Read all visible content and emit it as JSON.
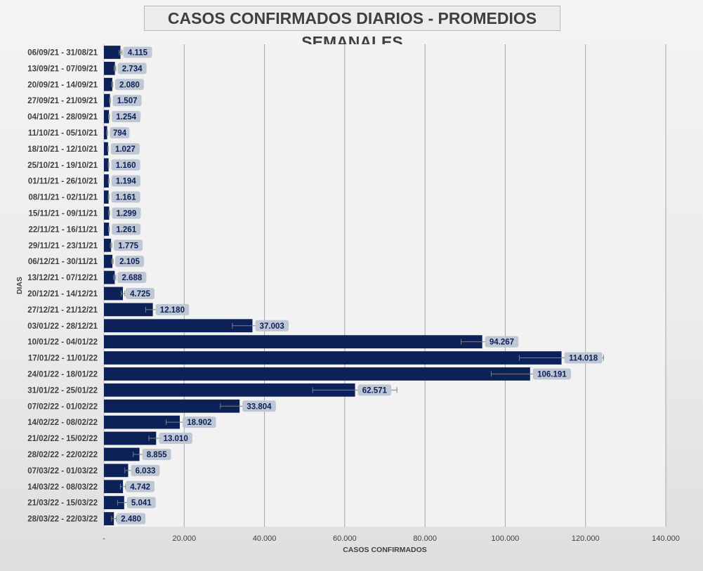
{
  "chart_data": {
    "type": "bar",
    "orientation": "horizontal",
    "title": "CASOS CONFIRMADOS DIARIOS - PROMEDIOS SEMANALES",
    "xlabel": "CASOS CONFIRMADOS",
    "ylabel": "DIAS",
    "xlim": [
      0,
      140000
    ],
    "x_ticks": [
      "-",
      "20.000",
      "40.000",
      "60.000",
      "80.000",
      "100.000",
      "120.000",
      "140.000"
    ],
    "grid": "vertical",
    "legend": "none",
    "colors": {
      "bar": "#0b2158",
      "plot_bg": "#f2f2f2",
      "gridline": "#a6a6a6",
      "label_bg": "#bfc7d5",
      "label_text": "#0b2158",
      "error_bar": "#7f7f7f"
    },
    "categories": [
      "06/09/21 - 31/08/21",
      "13/09/21 - 07/09/21",
      "20/09/21 - 14/09/21",
      "27/09/21 - 21/09/21",
      "04/10/21 - 28/09/21",
      "11/10/21 - 05/10/21",
      "18/10/21 - 12/10/21",
      "25/10/21 - 19/10/21",
      "01/11/21 - 26/10/21",
      "08/11/21 - 02/11/21",
      "15/11/21 - 09/11/21",
      "22/11/21 - 16/11/21",
      "29/11/21 - 23/11/21",
      "06/12/21 - 30/11/21",
      "13/12/21 - 07/12/21",
      "20/12/21 - 14/12/21",
      "27/12/21 - 21/12/21",
      "03/01/22 - 28/12/21",
      "10/01/22 - 04/01/22",
      "17/01/22 - 11/01/22",
      "24/01/22 - 18/01/22",
      "31/01/22 - 25/01/22",
      "07/02/22 - 01/02/22",
      "14/02/22 - 08/02/22",
      "21/02/22 - 15/02/22",
      "28/02/22 - 22/02/22",
      "07/03/22 - 01/03/22",
      "14/03/22 - 08/03/22",
      "21/03/22 - 15/03/22",
      "28/03/22 - 22/03/22"
    ],
    "values": [
      4115,
      2734,
      2080,
      1507,
      1254,
      794,
      1027,
      1160,
      1194,
      1161,
      1299,
      1261,
      1775,
      2105,
      2688,
      4725,
      12180,
      37003,
      94267,
      114018,
      106191,
      62571,
      33804,
      18902,
      13010,
      8855,
      6033,
      4742,
      5041,
      2480
    ],
    "value_labels": [
      "4.115",
      "2.734",
      "2.080",
      "1.507",
      "1.254",
      "794",
      "1.027",
      "1.160",
      "1.194",
      "1.161",
      "1.299",
      "1.261",
      "1.775",
      "2.105",
      "2.688",
      "4.725",
      "12.180",
      "37.003",
      "94.267",
      "114.018",
      "106.191",
      "62.571",
      "33.804",
      "18.902",
      "13.010",
      "8.855",
      "6.033",
      "4.742",
      "5.041",
      "2.480"
    ],
    "error_bars": [
      [
        3800,
        4500
      ],
      [
        2500,
        2950
      ],
      [
        1950,
        2200
      ],
      [
        1400,
        1600
      ],
      [
        1150,
        1350
      ],
      [
        700,
        880
      ],
      [
        950,
        1100
      ],
      [
        1080,
        1240
      ],
      [
        1110,
        1280
      ],
      [
        1080,
        1240
      ],
      [
        1200,
        1400
      ],
      [
        1170,
        1350
      ],
      [
        1600,
        1950
      ],
      [
        1900,
        2300
      ],
      [
        2400,
        2950
      ],
      [
        4300,
        5200
      ],
      [
        10400,
        14000
      ],
      [
        32000,
        42000
      ],
      [
        89000,
        99500
      ],
      [
        103500,
        124500
      ],
      [
        96500,
        115500
      ],
      [
        52000,
        73000
      ],
      [
        29000,
        38500
      ],
      [
        15500,
        22300
      ],
      [
        11200,
        14800
      ],
      [
        7300,
        10400
      ],
      [
        5200,
        6900
      ],
      [
        4100,
        5400
      ],
      [
        3400,
        6700
      ],
      [
        1900,
        3100
      ]
    ]
  }
}
